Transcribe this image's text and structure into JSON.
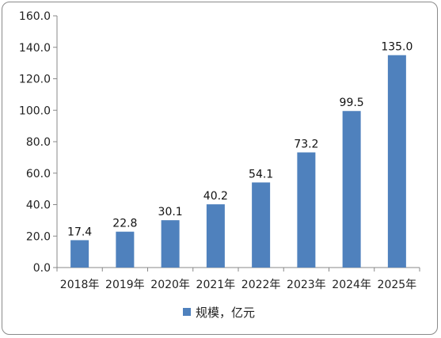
{
  "chart_data": {
    "type": "bar",
    "categories": [
      "2018年",
      "2019年",
      "2020年",
      "2021年",
      "2022年",
      "2023年",
      "2024年",
      "2025年"
    ],
    "series": [
      {
        "name": "规模，亿元",
        "values": [
          17.4,
          22.8,
          30.1,
          40.2,
          54.1,
          73.2,
          99.5,
          135.0
        ]
      }
    ],
    "data_labels": [
      "17.4",
      "22.8",
      "30.1",
      "40.2",
      "54.1",
      "73.2",
      "99.5",
      "135.0"
    ],
    "ylim": [
      0,
      160
    ],
    "yticks": [
      0,
      20,
      40,
      60,
      80,
      100,
      120,
      140,
      160
    ],
    "ytick_labels": [
      "0.0",
      "20.0",
      "40.0",
      "60.0",
      "80.0",
      "100.0",
      "120.0",
      "140.0",
      "160.0"
    ],
    "grid": false,
    "legend_position": "bottom",
    "bar_color": "#4f81bd"
  }
}
